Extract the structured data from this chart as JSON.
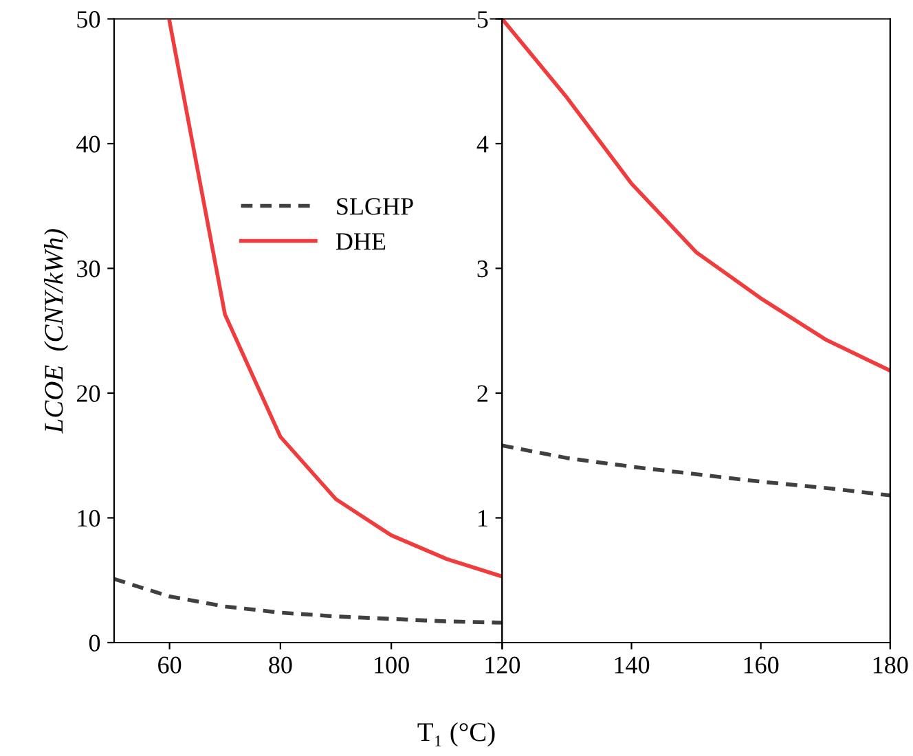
{
  "chart_data": [
    {
      "type": "line",
      "ylabel": "LCOE  (CNY/kWh)",
      "xlabel": "T₁ (°C)",
      "xlim": [
        50,
        120
      ],
      "xticks": [
        60,
        80,
        100,
        120
      ],
      "ylim": [
        0,
        50
      ],
      "yticks": [
        0,
        10,
        20,
        30,
        40,
        50
      ],
      "legend": "top",
      "grid": false,
      "series": [
        {
          "name": "SLGHP",
          "color": "#404040",
          "line_style": "dashed",
          "x": [
            50,
            60,
            70,
            80,
            90,
            100,
            110,
            120
          ],
          "values": [
            5.1,
            3.7,
            2.9,
            2.4,
            2.1,
            1.9,
            1.7,
            1.6
          ]
        },
        {
          "name": "DHE",
          "color": "#f03c3c",
          "line_style": "solid",
          "x": [
            60,
            70,
            80,
            90,
            100,
            110,
            120
          ],
          "values": [
            49.8,
            26.3,
            16.5,
            11.5,
            8.6,
            6.7,
            5.3
          ]
        }
      ]
    },
    {
      "type": "line",
      "xlim": [
        120,
        180
      ],
      "xticks": [
        {
          "value": 120,
          "label": null
        },
        140,
        160,
        180
      ],
      "ylim": [
        0,
        5
      ],
      "yticks": [
        {
          "value": 0,
          "label": null
        },
        1,
        2,
        3,
        4,
        5
      ],
      "grid": false,
      "series": [
        {
          "color": "#404040",
          "line_style": "dashed",
          "x": [
            120,
            130,
            140,
            150,
            160,
            170,
            180
          ],
          "values": [
            1.58,
            1.48,
            1.41,
            1.35,
            1.29,
            1.24,
            1.18
          ]
        },
        {
          "color": "#f03c3c",
          "line_style": "solid",
          "x": [
            120,
            130,
            140,
            150,
            160,
            170,
            180
          ],
          "values": [
            5.0,
            4.37,
            3.68,
            3.13,
            2.76,
            2.43,
            2.18
          ]
        }
      ]
    }
  ]
}
